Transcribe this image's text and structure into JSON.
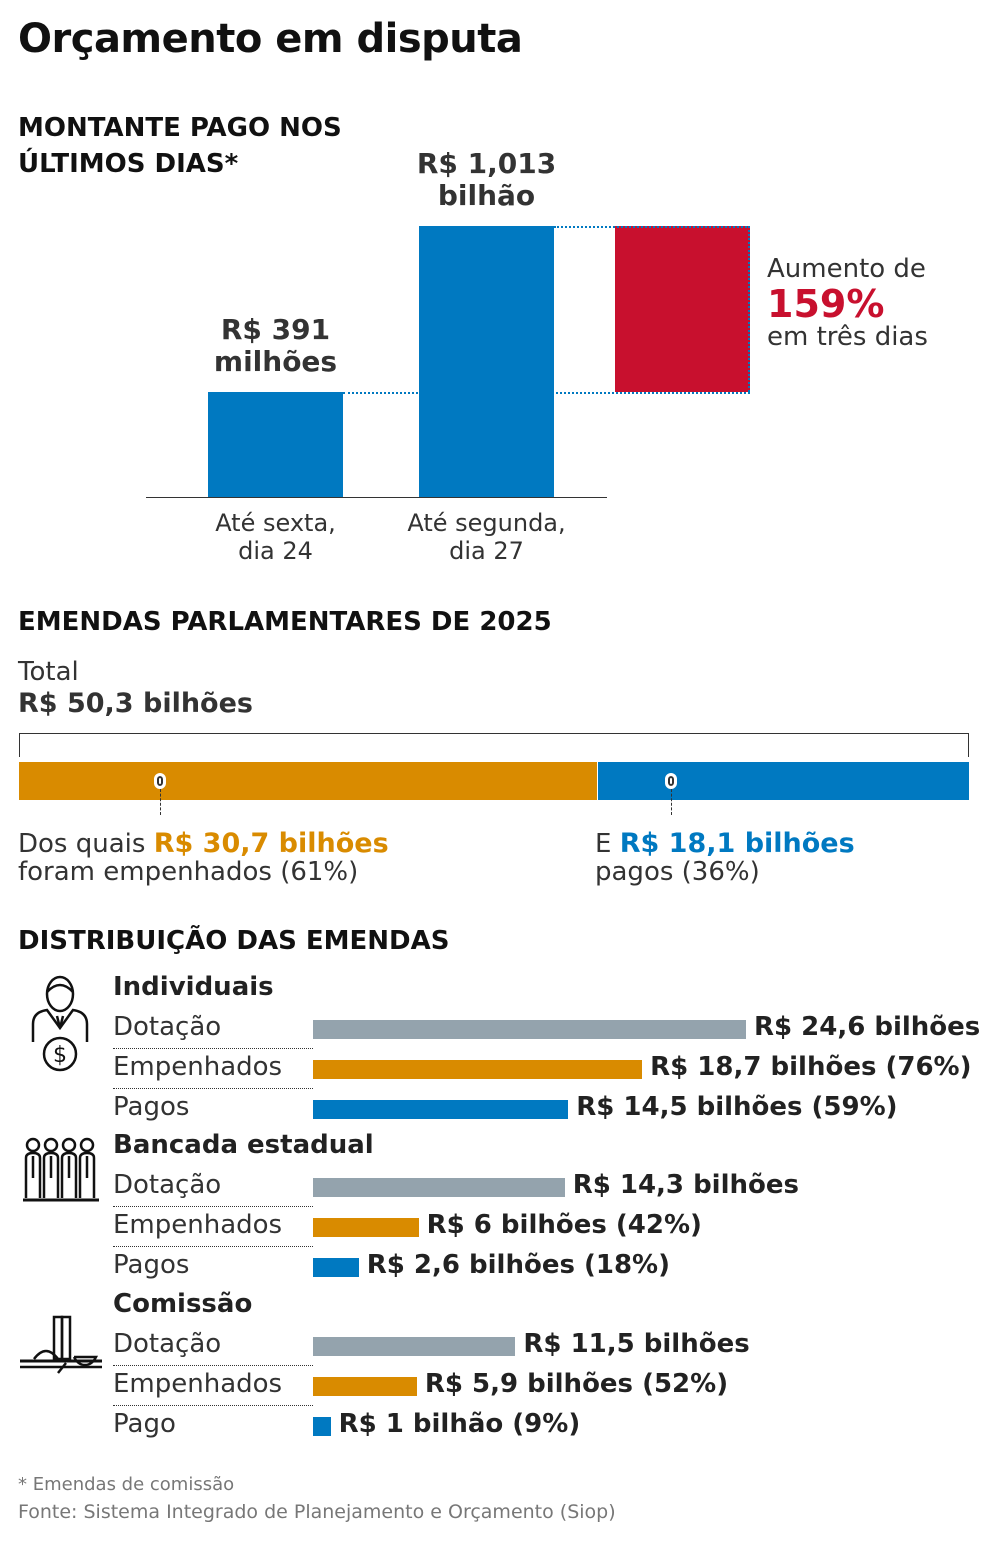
{
  "title": "Orçamento em disputa",
  "colors": {
    "blue": "#0079c1",
    "orange": "#d98b00",
    "red": "#c8102e",
    "gray": "#94a3ad"
  },
  "chart_data": [
    {
      "type": "bar",
      "title": "MONTANTE PAGO NOS ÚLTIMOS DIAS*",
      "categories": [
        "Até sexta, dia 24",
        "Até segunda, dia 27"
      ],
      "values": [
        391,
        1013
      ],
      "unit": "R$ milhões",
      "data_labels": [
        [
          "R$ 391",
          "milhões"
        ],
        [
          "R$ 1,013",
          "bilhão"
        ]
      ],
      "annotation": {
        "line1": "Aumento de",
        "value": "159%",
        "line2": "em três dias"
      }
    },
    {
      "type": "bar",
      "title": "EMENDAS PARLAMENTARES DE 2025",
      "total_label": "Total",
      "total_value": "R$ 50,3 bilhões",
      "segments": [
        {
          "value": 30.7,
          "percent": 61,
          "pre": "Dos quais ",
          "amount": "R$ 30,7 bilhões",
          "post": "foram empenhados (61%)"
        },
        {
          "value": 18.1,
          "percent": 36,
          "pre": "E ",
          "amount": "R$ 18,1 bilhões",
          "post": "pagos (36%)"
        }
      ]
    },
    {
      "type": "bar",
      "title": "DISTRIBUIÇÃO DAS EMENDAS",
      "groups": [
        {
          "name": "Individuais",
          "icon": "politician-money-icon",
          "rows": [
            {
              "label": "Dotação",
              "value": 24.6,
              "text": "R$ 24,6 bilhões",
              "kind": "gray"
            },
            {
              "label": "Empenhados",
              "value": 18.7,
              "text": "R$ 18,7 bilhões (76%)",
              "kind": "orange"
            },
            {
              "label": "Pagos",
              "value": 14.5,
              "text": "R$ 14,5 bilhões (59%)",
              "kind": "blue"
            }
          ]
        },
        {
          "name": "Bancada estadual",
          "icon": "group-people-icon",
          "rows": [
            {
              "label": "Dotação",
              "value": 14.3,
              "text": "R$ 14,3 bilhões",
              "kind": "gray"
            },
            {
              "label": "Empenhados",
              "value": 6,
              "text": "R$ 6 bilhões (42%)",
              "kind": "orange"
            },
            {
              "label": "Pagos",
              "value": 2.6,
              "text": "R$ 2,6 bilhões (18%)",
              "kind": "blue"
            }
          ]
        },
        {
          "name": "Comissão",
          "icon": "congress-building-icon",
          "rows": [
            {
              "label": "Dotação",
              "value": 11.5,
              "text": "R$ 11,5 bilhões",
              "kind": "gray"
            },
            {
              "label": "Empenhados",
              "value": 5.9,
              "text": "R$ 5,9 bilhões (52%)",
              "kind": "orange"
            },
            {
              "label": "Pago",
              "value": 1,
              "text": "R$ 1 bilhão (9%)",
              "kind": "blue"
            }
          ]
        }
      ]
    }
  ],
  "footnote": "* Emendas de comissão",
  "source": "Fonte: Sistema Integrado de Planejamento e Orçamento (Siop)"
}
